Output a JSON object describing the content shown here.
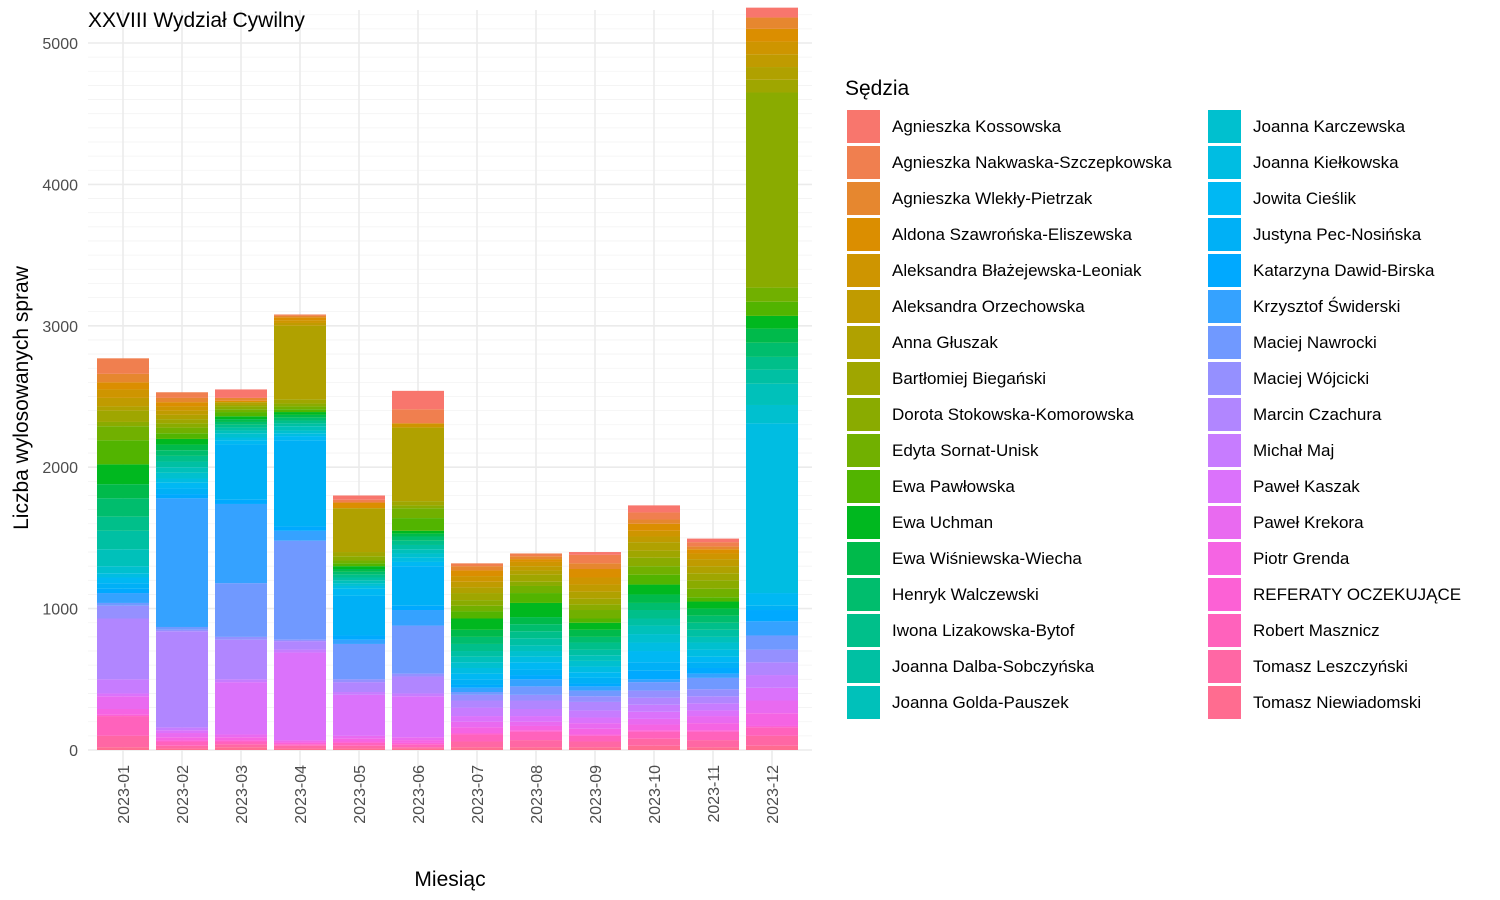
{
  "chart_data": {
    "type": "bar",
    "stacked": true,
    "title": "XXVIII Wydział Cywilny",
    "xlabel": "Miesiąc",
    "ylabel": "Liczba wylosowanych spraw",
    "ylim": [
      0,
      5200
    ],
    "y_ticks": [
      0,
      1000,
      2000,
      3000,
      4000,
      5000
    ],
    "grid": true,
    "legend_title": "Sędzia",
    "legend_position": "right",
    "categories": [
      "2023-01",
      "2023-02",
      "2023-03",
      "2023-04",
      "2023-05",
      "2023-06",
      "2023-07",
      "2023-08",
      "2023-09",
      "2023-10",
      "2023-11",
      "2023-12"
    ],
    "series": [
      {
        "name": "Agnieszka Kossowska",
        "color": "#F8766D",
        "values": [
          0,
          0,
          60,
          0,
          30,
          130,
          0,
          0,
          20,
          50,
          25,
          70
        ]
      },
      {
        "name": "Agnieszka Nakwaska-Szczepkowska",
        "color": "#F07F4F",
        "values": [
          110,
          40,
          0,
          10,
          20,
          100,
          20,
          20,
          60,
          50,
          30,
          0
        ]
      },
      {
        "name": "Agnieszka Wlekły-Pietrzak",
        "color": "#E6872F",
        "values": [
          60,
          30,
          20,
          10,
          0,
          0,
          30,
          20,
          40,
          30,
          20,
          80
        ]
      },
      {
        "name": "Aldona Szawrońska-Eliszewska",
        "color": "#DB8E00",
        "values": [
          50,
          30,
          10,
          20,
          40,
          0,
          40,
          20,
          60,
          50,
          30,
          90
        ]
      },
      {
        "name": "Aleksandra Błażejewska-Leoniak",
        "color": "#CE9500",
        "values": [
          60,
          30,
          0,
          20,
          0,
          30,
          40,
          30,
          50,
          40,
          40,
          90
        ]
      },
      {
        "name": "Aleksandra Orzechowska",
        "color": "#C09B00",
        "values": [
          60,
          30,
          0,
          20,
          0,
          0,
          40,
          30,
          50,
          40,
          50,
          90
        ]
      },
      {
        "name": "Anna Głuszak",
        "color": "#B0A100",
        "values": [
          30,
          30,
          20,
          520,
          310,
          520,
          40,
          30,
          50,
          60,
          50,
          90
        ]
      },
      {
        "name": "Bartłomiej Biegański",
        "color": "#9FA600",
        "values": [
          80,
          30,
          10,
          30,
          30,
          30,
          50,
          50,
          40,
          50,
          50,
          90
        ]
      },
      {
        "name": "Dorota Stokowska-Komorowska",
        "color": "#8AAB00",
        "values": [
          30,
          30,
          20,
          20,
          30,
          20,
          40,
          30,
          40,
          60,
          60,
          1380
        ]
      },
      {
        "name": "Edyta Sornat-Unisk",
        "color": "#71B000",
        "values": [
          100,
          40,
          20,
          20,
          20,
          70,
          40,
          50,
          60,
          60,
          60,
          100
        ]
      },
      {
        "name": "Ewa Pawłowska",
        "color": "#52B400",
        "values": [
          170,
          40,
          30,
          20,
          20,
          90,
          50,
          70,
          30,
          70,
          30,
          100
        ]
      },
      {
        "name": "Ewa Uchman",
        "color": "#00B81F",
        "values": [
          140,
          40,
          20,
          20,
          20,
          20,
          80,
          100,
          50,
          70,
          50,
          90
        ]
      },
      {
        "name": "Ewa Wiśniewska-Wiecha",
        "color": "#00BA4B",
        "values": [
          100,
          40,
          20,
          20,
          20,
          20,
          50,
          50,
          50,
          60,
          50,
          100
        ]
      },
      {
        "name": "Henryk Walczewski",
        "color": "#00BD6D",
        "values": [
          130,
          40,
          20,
          20,
          20,
          30,
          50,
          50,
          40,
          50,
          50,
          100
        ]
      },
      {
        "name": "Iwona Lizakowska-Bytof",
        "color": "#00BF8A",
        "values": [
          100,
          40,
          20,
          20,
          20,
          30,
          50,
          50,
          50,
          60,
          50,
          90
        ]
      },
      {
        "name": "Joanna Dalba-Sobczyńska",
        "color": "#00C0A3",
        "values": [
          130,
          40,
          20,
          20,
          20,
          30,
          40,
          50,
          40,
          50,
          50,
          100
        ]
      },
      {
        "name": "Joanna Golda-Pauszek",
        "color": "#00C1BA",
        "values": [
          120,
          40,
          20,
          30,
          20,
          30,
          40,
          40,
          40,
          60,
          40,
          150
        ]
      },
      {
        "name": "Joanna Karczewska",
        "color": "#00C0CF",
        "values": [
          50,
          40,
          30,
          20,
          20,
          30,
          40,
          40,
          40,
          60,
          50,
          130
        ]
      },
      {
        "name": "Joanna Kiełkowska",
        "color": "#00BDE2",
        "values": [
          30,
          30,
          20,
          20,
          20,
          30,
          40,
          40,
          40,
          60,
          50,
          1200
        ]
      },
      {
        "name": "Jowita Cieślik",
        "color": "#00B8F3",
        "values": [
          40,
          40,
          30,
          30,
          50,
          30,
          40,
          50,
          40,
          80,
          40,
          90
        ]
      },
      {
        "name": "Justyna Pec-Nosińska",
        "color": "#00B0F6",
        "values": [
          40,
          40,
          390,
          610,
          280,
          280,
          40,
          40,
          40,
          60,
          40,
          30
        ]
      },
      {
        "name": "Katarzyna Dawid-Birska",
        "color": "#00A9FF",
        "values": [
          30,
          30,
          30,
          30,
          30,
          30,
          20,
          30,
          20,
          60,
          40,
          80
        ]
      },
      {
        "name": "Krzysztof Świderski",
        "color": "#35A2FF",
        "values": [
          70,
          910,
          560,
          70,
          30,
          110,
          30,
          50,
          30,
          20,
          30,
          100
        ]
      },
      {
        "name": "Maciej Nawrocki",
        "color": "#7099FF",
        "values": [
          20,
          20,
          380,
          700,
          250,
          340,
          20,
          60,
          40,
          60,
          80,
          100
        ]
      },
      {
        "name": "Maciej Wójcicki",
        "color": "#9590FF",
        "values": [
          90,
          10,
          20,
          10,
          20,
          20,
          40,
          40,
          40,
          50,
          50,
          90
        ]
      },
      {
        "name": "Marcin Czachura",
        "color": "#B186FF",
        "values": [
          430,
          680,
          280,
          60,
          70,
          120,
          50,
          60,
          60,
          50,
          50,
          90
        ]
      },
      {
        "name": "Michał Maj",
        "color": "#C77CFF",
        "values": [
          100,
          20,
          20,
          20,
          20,
          20,
          60,
          50,
          50,
          50,
          50,
          90
        ]
      },
      {
        "name": "Paweł Kaszak",
        "color": "#DB72FB",
        "values": [
          20,
          20,
          370,
          620,
          290,
          290,
          40,
          40,
          40,
          50,
          40,
          90
        ]
      },
      {
        "name": "Paweł Krekora",
        "color": "#E96AF0",
        "values": [
          90,
          30,
          20,
          10,
          20,
          20,
          40,
          30,
          40,
          40,
          50,
          90
        ]
      },
      {
        "name": "Piotr Grenda",
        "color": "#F564E3",
        "values": [
          40,
          20,
          20,
          10,
          20,
          20,
          40,
          30,
          40,
          40,
          50,
          90
        ]
      },
      {
        "name": "REFERATY OCZEKUJĄCE",
        "color": "#FC61D5",
        "values": [
          10,
          10,
          10,
          10,
          10,
          10,
          10,
          10,
          10,
          10,
          10,
          10
        ]
      },
      {
        "name": "Robert Masznicz",
        "color": "#FF62BC",
        "values": [
          140,
          30,
          20,
          10,
          20,
          20,
          50,
          60,
          40,
          50,
          60,
          60
        ]
      },
      {
        "name": "Tomasz Leszczyński",
        "color": "#FF67A4",
        "values": [
          80,
          20,
          20,
          20,
          20,
          10,
          40,
          50,
          40,
          50,
          50,
          70
        ]
      },
      {
        "name": "Tomasz Niewiadomski",
        "color": "#FF6C90",
        "values": [
          20,
          10,
          20,
          10,
          10,
          10,
          20,
          20,
          20,
          30,
          20,
          30
        ]
      }
    ]
  }
}
